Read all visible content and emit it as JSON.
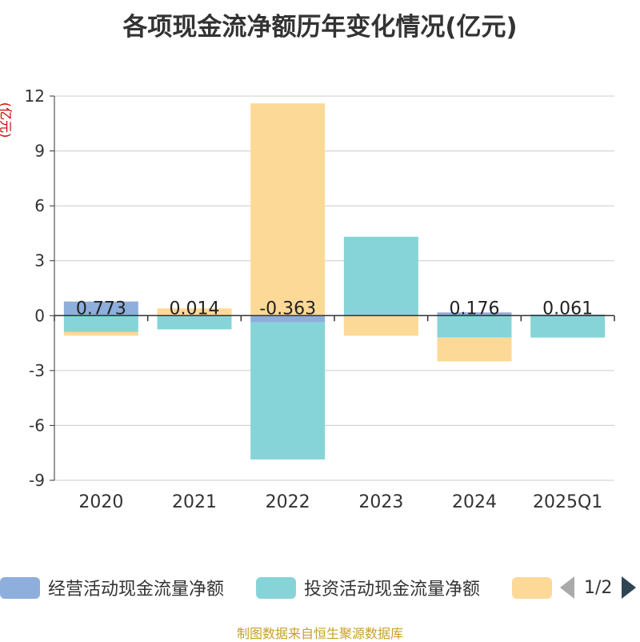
{
  "chart_data": {
    "type": "bar",
    "stacked": true,
    "title": "各项现金流净额历年变化情况(亿元)",
    "ylabel": "(亿元)",
    "xlabel": "",
    "ylim": [
      -9,
      12
    ],
    "yticks": [
      -9,
      -6,
      -3,
      0,
      3,
      6,
      9,
      12
    ],
    "categories": [
      "2020",
      "2021",
      "2022",
      "2023",
      "2024",
      "2025Q1"
    ],
    "series": [
      {
        "name": "经营活动现金流量净额",
        "color": "#8eaedb",
        "values": [
          0.773,
          0.014,
          -0.363,
          0.01,
          0.176,
          0.061
        ],
        "labels": [
          "0.773",
          "0.014",
          "-0.363",
          "",
          "0.176",
          "0.061"
        ]
      },
      {
        "name": "投资活动现金流量净额",
        "color": "#86d4d8",
        "values": [
          -0.9,
          -0.75,
          -7.5,
          4.3,
          -1.2,
          -1.2
        ]
      },
      {
        "name": "",
        "color": "#fdd997",
        "values": [
          -0.2,
          0.38,
          11.6,
          -1.1,
          -1.3,
          0
        ]
      }
    ],
    "grid": true,
    "legend_position": "bottom"
  },
  "legend": {
    "page": "1/2"
  },
  "source": "制图数据来自恒生聚源数据库"
}
